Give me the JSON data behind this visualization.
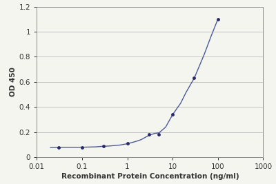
{
  "x_data": [
    0.03,
    0.1,
    0.3,
    1.0,
    3.0,
    5.0,
    10.0,
    30.0,
    100.0
  ],
  "y_data": [
    0.08,
    0.08,
    0.09,
    0.11,
    0.18,
    0.18,
    0.34,
    0.63,
    1.1
  ],
  "x_smooth": [
    0.02,
    0.025,
    0.03,
    0.04,
    0.05,
    0.07,
    0.1,
    0.15,
    0.2,
    0.3,
    0.4,
    0.5,
    0.7,
    1.0,
    1.5,
    2.0,
    3.0,
    4.0,
    5.0,
    7.0,
    10.0,
    15.0,
    20.0,
    30.0,
    50.0,
    70.0,
    100.0
  ],
  "y_smooth": [
    0.079,
    0.079,
    0.08,
    0.08,
    0.08,
    0.08,
    0.08,
    0.082,
    0.083,
    0.088,
    0.09,
    0.093,
    0.098,
    0.108,
    0.125,
    0.14,
    0.175,
    0.19,
    0.195,
    0.24,
    0.34,
    0.43,
    0.52,
    0.63,
    0.82,
    0.96,
    1.1
  ],
  "line_color": "#4a5a9a",
  "dot_color": "#2a2a6a",
  "xlabel": "Recombinant Protein Concentration (ng/ml)",
  "ylabel": "OD 450",
  "xlim_log": [
    0.01,
    1000
  ],
  "ylim": [
    0,
    1.2
  ],
  "yticks": [
    0,
    0.2,
    0.4,
    0.6,
    0.8,
    1.0,
    1.2
  ],
  "ytick_labels": [
    "0",
    "0.2",
    "0.4",
    "0.6",
    "0.8",
    "1",
    "1.2"
  ],
  "xtick_labels": [
    "0.01",
    "0.1",
    "1",
    "10",
    "100",
    "1000"
  ],
  "xtick_vals": [
    0.01,
    0.1,
    1,
    10,
    100,
    1000
  ],
  "background_color": "#f5f5f0",
  "plot_bg_color": "#f5f5f0",
  "grid_color": "#bbbbbb",
  "spine_color": "#888888",
  "font_color": "#333333",
  "xlabel_fontsize": 7.5,
  "ylabel_fontsize": 7.5,
  "tick_fontsize": 7.5
}
